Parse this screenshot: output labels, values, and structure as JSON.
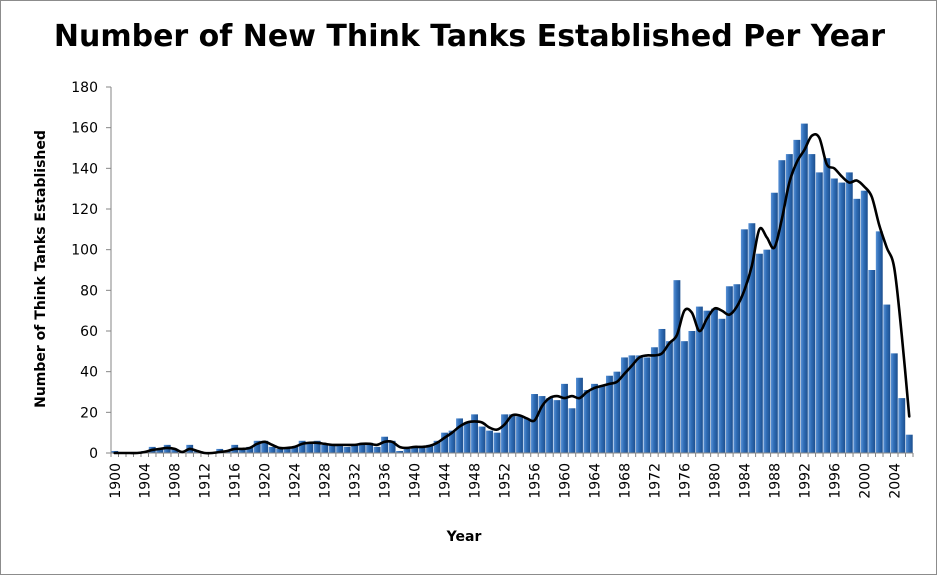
{
  "chart_data": {
    "type": "bar",
    "title": "Number of New Think Tanks Established Per Year",
    "xlabel": "Year",
    "ylabel": "Number of Think Tanks Established",
    "ylim": [
      0,
      180
    ],
    "yticks": [
      0,
      20,
      40,
      60,
      80,
      100,
      120,
      140,
      160,
      180
    ],
    "xticks": [
      "1900",
      "1904",
      "1908",
      "1912",
      "1916",
      "1920",
      "1924",
      "1928",
      "1932",
      "1936",
      "1940",
      "1944",
      "1948",
      "1952",
      "1956",
      "1960",
      "1964",
      "1968",
      "1972",
      "1976",
      "1980",
      "1984",
      "1988",
      "1992",
      "1996",
      "2000",
      "2004"
    ],
    "grid": false,
    "legend": "none",
    "bar_color": "#2e6cb5",
    "line_color": "#000000",
    "x": [
      1900,
      1901,
      1902,
      1903,
      1904,
      1905,
      1906,
      1907,
      1908,
      1909,
      1910,
      1911,
      1912,
      1913,
      1914,
      1915,
      1916,
      1917,
      1918,
      1919,
      1920,
      1921,
      1922,
      1923,
      1924,
      1925,
      1926,
      1927,
      1928,
      1929,
      1930,
      1931,
      1932,
      1933,
      1934,
      1935,
      1936,
      1937,
      1938,
      1939,
      1940,
      1941,
      1942,
      1943,
      1944,
      1945,
      1946,
      1947,
      1948,
      1949,
      1950,
      1951,
      1952,
      1953,
      1954,
      1955,
      1956,
      1957,
      1958,
      1959,
      1960,
      1961,
      1962,
      1963,
      1964,
      1965,
      1966,
      1967,
      1968,
      1969,
      1970,
      1971,
      1972,
      1973,
      1974,
      1975,
      1976,
      1977,
      1978,
      1979,
      1980,
      1981,
      1982,
      1983,
      1984,
      1985,
      1986,
      1987,
      1988,
      1989,
      1990,
      1991,
      1992,
      1993,
      1994,
      1995,
      1996,
      1997,
      1998,
      1999,
      2000,
      2001,
      2002,
      2003,
      2004,
      2005,
      2006
    ],
    "series": [
      {
        "type": "bar",
        "values": [
          1,
          0,
          0,
          0,
          1,
          3,
          2,
          4,
          2,
          0,
          4,
          1,
          0,
          0,
          2,
          1,
          4,
          2,
          3,
          6,
          6,
          3,
          2,
          2,
          3,
          6,
          5,
          6,
          4,
          4,
          4,
          3,
          4,
          5,
          5,
          3,
          8,
          6,
          1,
          2,
          3,
          3,
          4,
          6,
          10,
          11,
          17,
          15,
          19,
          13,
          11,
          10,
          19,
          19,
          18,
          17,
          29,
          28,
          27,
          26,
          34,
          22,
          37,
          31,
          34,
          33,
          38,
          40,
          47,
          48,
          48,
          47,
          52,
          61,
          55,
          85,
          55,
          60,
          72,
          70,
          71,
          66,
          82,
          83,
          110,
          113,
          98,
          100,
          128,
          144,
          147,
          154,
          162,
          147,
          138,
          145,
          135,
          133,
          138,
          125,
          129,
          90,
          109,
          73,
          49,
          27,
          9
        ]
      },
      {
        "type": "line",
        "values": [
          0,
          0,
          0,
          0,
          0.5,
          1.5,
          2,
          2.5,
          2,
          0.5,
          2,
          1,
          0,
          0,
          0.5,
          1,
          2,
          2,
          2.5,
          4.5,
          5.5,
          4,
          2.5,
          2.5,
          3,
          4.5,
          5,
          5,
          4.5,
          4,
          4,
          4,
          4,
          4.5,
          4.5,
          4,
          5.5,
          5.5,
          3,
          2.5,
          3,
          3,
          3.5,
          5,
          7.5,
          10,
          13,
          15,
          15.5,
          15,
          12.5,
          11.5,
          14,
          18.5,
          18.5,
          17,
          16,
          23,
          27,
          28,
          27,
          28,
          27,
          30,
          32,
          33,
          34,
          35,
          39,
          43,
          47,
          48,
          48,
          49,
          54,
          58,
          70,
          69,
          60,
          66,
          71,
          70,
          68,
          72,
          80,
          92,
          110,
          106,
          101,
          115,
          133,
          143,
          149,
          156,
          155,
          142,
          140,
          136,
          133,
          134,
          131,
          126,
          112,
          101,
          91,
          58,
          18
        ]
      }
    ]
  }
}
